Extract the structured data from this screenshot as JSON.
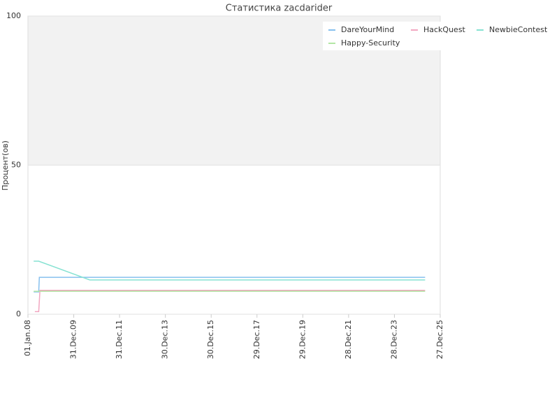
{
  "chart_data": {
    "type": "line",
    "title": "Статистика zacdarider",
    "y_label": "Процент(ов)",
    "xlim": [
      "2008-01-01",
      "2025-12-27"
    ],
    "xticks": [
      {
        "value": "2008-01-01",
        "label": "01.Jan.08"
      },
      {
        "value": "2009-12-31",
        "label": "31.Dec.09"
      },
      {
        "value": "2011-12-31",
        "label": "31.Dec.11"
      },
      {
        "value": "2013-12-30",
        "label": "30.Dec.13"
      },
      {
        "value": "2015-12-30",
        "label": "30.Dec.15"
      },
      {
        "value": "2017-12-29",
        "label": "29.Dec.17"
      },
      {
        "value": "2019-12-29",
        "label": "29.Dec.19"
      },
      {
        "value": "2021-12-28",
        "label": "28.Dec.21"
      },
      {
        "value": "2023-12-28",
        "label": "28.Dec.23"
      },
      {
        "value": "2025-12-27",
        "label": "27.Dec.25"
      }
    ],
    "ylim": [
      0,
      100
    ],
    "yticks": [
      0,
      50,
      100
    ],
    "band": {
      "from": 50,
      "to": 100,
      "color": "#f2f2f2"
    },
    "series": [
      {
        "name": "DareYourMind",
        "color": "#86c0ee",
        "x": [
          "2008-04-01",
          "2008-06-20",
          "2008-07-01",
          "2025-05-01"
        ],
        "values": [
          7.5,
          7.5,
          12.4,
          12.4
        ]
      },
      {
        "name": "HackQuest",
        "color": "#f2a7c1",
        "x": [
          "2008-04-20",
          "2008-06-20",
          "2008-07-10",
          "2025-05-01"
        ],
        "values": [
          0.9,
          0.9,
          8,
          8
        ]
      },
      {
        "name": "NewbieContest",
        "color": "#86e2d2",
        "x": [
          "2008-04-01",
          "2008-06-20",
          "2010-09-15",
          "2025-05-01"
        ],
        "values": [
          17.8,
          17.8,
          11.5,
          11.5
        ]
      },
      {
        "name": "Happy-Security",
        "color": "#b2e6a4",
        "x": [
          "2008-04-01",
          "2025-05-01"
        ],
        "values": [
          7.7,
          7.7
        ]
      }
    ]
  }
}
